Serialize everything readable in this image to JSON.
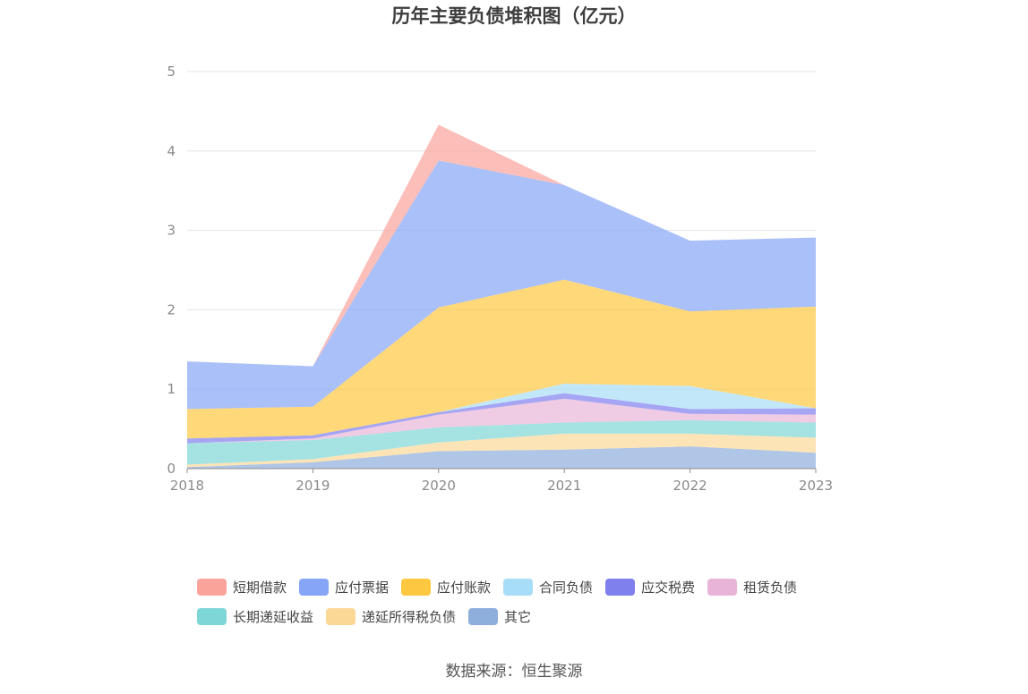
{
  "title": "历年主要负债堆积图（亿元）",
  "source": "数据来源：恒生聚源",
  "chart_data": {
    "type": "area",
    "stacked": true,
    "title": "历年主要负债堆积图（亿元）",
    "categories": [
      "2018",
      "2019",
      "2020",
      "2021",
      "2022",
      "2023"
    ],
    "ylim": [
      0,
      5
    ],
    "yticks": [
      "0",
      "1",
      "2",
      "3",
      "4",
      "5"
    ],
    "grid": true,
    "legend_position": "bottom",
    "series": [
      {
        "name": "其它",
        "color": "#8eaedc",
        "values": [
          0.02,
          0.08,
          0.22,
          0.24,
          0.28,
          0.2
        ]
      },
      {
        "name": "递延所得税负债",
        "color": "#fcd897",
        "values": [
          0.03,
          0.04,
          0.11,
          0.2,
          0.16,
          0.19
        ]
      },
      {
        "name": "长期递延收益",
        "color": "#7fd6d6",
        "values": [
          0.27,
          0.24,
          0.19,
          0.14,
          0.17,
          0.19
        ]
      },
      {
        "name": "租赁负债",
        "color": "#e8b5d8",
        "values": [
          0.0,
          0.02,
          0.16,
          0.3,
          0.08,
          0.1
        ]
      },
      {
        "name": "应交税费",
        "color": "#7f7fee",
        "values": [
          0.06,
          0.04,
          0.03,
          0.07,
          0.06,
          0.08
        ]
      },
      {
        "name": "合同负债",
        "color": "#a8ddf7",
        "values": [
          0.0,
          0.0,
          0.0,
          0.12,
          0.29,
          0.0
        ]
      },
      {
        "name": "应付账款",
        "color": "#fdc840",
        "values": [
          0.37,
          0.36,
          1.32,
          1.31,
          0.94,
          1.28
        ]
      },
      {
        "name": "应付票据",
        "color": "#86a5f6",
        "values": [
          0.6,
          0.51,
          1.85,
          1.19,
          0.89,
          0.87
        ]
      },
      {
        "name": "短期借款",
        "color": "#f9a39a",
        "values": [
          0.0,
          0.0,
          0.45,
          0.0,
          0.0,
          0.0
        ]
      }
    ],
    "legend_order": [
      "短期借款",
      "应付票据",
      "应付账款",
      "合同负债",
      "应交税费",
      "租赁负债",
      "长期递延收益",
      "递延所得税负债",
      "其它"
    ]
  }
}
